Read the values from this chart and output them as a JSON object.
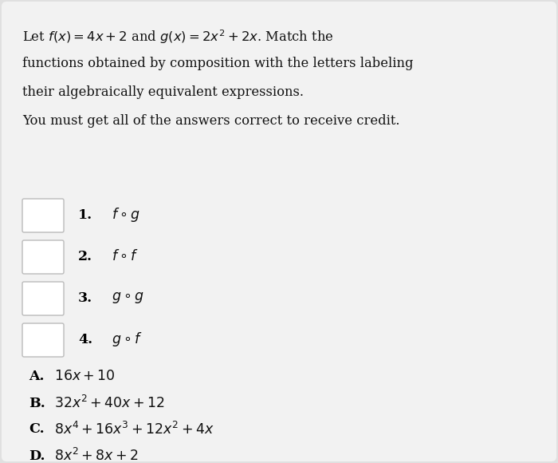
{
  "background_color": "#e0e0e0",
  "content_bg_color": "#f2f2f2",
  "title_lines": [
    "Let $f(x) = 4x + 2$ and $g(x) = 2x^2 + 2x$. Match the",
    "functions obtained by composition with the letters labeling",
    "their algebraically equivalent expressions.",
    "You must get all of the answers correct to receive credit."
  ],
  "questions": [
    {
      "num": "1.",
      "expr": "$f \\circ g$"
    },
    {
      "num": "2.",
      "expr": "$f \\circ f$"
    },
    {
      "num": "3.",
      "expr": "$g \\circ g$"
    },
    {
      "num": "4.",
      "expr": "$g \\circ f$"
    }
  ],
  "answers": [
    {
      "label": "A.",
      "expr": "$16x + 10$"
    },
    {
      "label": "B.",
      "expr": "$32x^2 + 40x + 12$"
    },
    {
      "label": "C.",
      "expr": "$8x^4 + 16x^3 + 12x^2 + 4x$"
    },
    {
      "label": "D.",
      "expr": "$8x^2 + 8x + 2$"
    }
  ],
  "box_color": "#ffffff",
  "box_border_color": "#bbbbbb",
  "text_color": "#111111",
  "bold_color": "#000000",
  "title_fontsize": 11.8,
  "question_fontsize": 12.5,
  "answer_fontsize": 12.5,
  "fig_width": 7.0,
  "fig_height": 5.8,
  "dpi": 100
}
